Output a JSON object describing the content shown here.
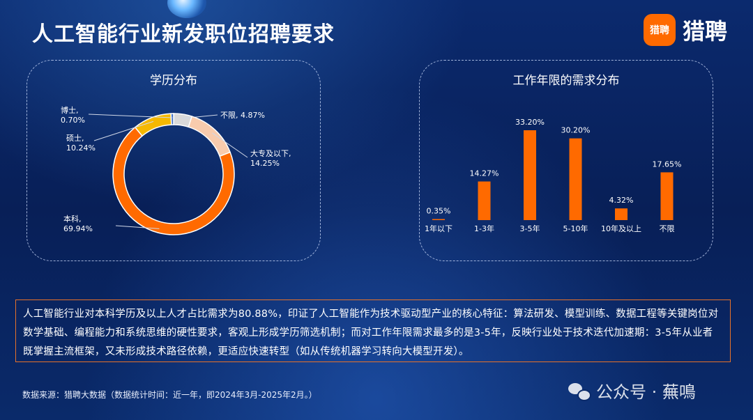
{
  "header": {
    "title": "人工智能行业新发职位招聘要求",
    "logo_badge": "猎聘",
    "logo_text": "猎聘"
  },
  "chart_data": [
    {
      "type": "pie",
      "style": "donut",
      "title": "学历分布",
      "slices": [
        {
          "label": "不限",
          "value": 4.87,
          "display": "4.87%",
          "color": "#d9d9d9"
        },
        {
          "label": "大专及以下",
          "value": 14.25,
          "display": "14.25%",
          "color": "#f8cbad"
        },
        {
          "label": "本科",
          "value": 69.94,
          "display": "69.94%",
          "color": "#ff6a00"
        },
        {
          "label": "硕士",
          "value": 10.24,
          "display": "10.24%",
          "color": "#f5b800"
        },
        {
          "label": "博士",
          "value": 0.7,
          "display": "0.70%",
          "color": "#4472c4"
        }
      ]
    },
    {
      "type": "bar",
      "title": "工作年限的需求分布",
      "categories": [
        "1年以下",
        "1-3年",
        "3-5年",
        "5-10年",
        "10年及以上",
        "不限"
      ],
      "values": [
        0.35,
        14.27,
        33.2,
        30.2,
        4.32,
        17.65
      ],
      "value_labels": [
        "0.35%",
        "14.27%",
        "33.20%",
        "30.20%",
        "4.32%",
        "17.65%"
      ],
      "ylim": [
        0,
        35
      ],
      "color": "#ff6a00",
      "grid": false
    }
  ],
  "summary": {
    "text": "人工智能行业对本科学历及以上人才占比需求为80.88%，印证了人工智能作为技术驱动型产业的核心特征：算法研发、模型训练、数据工程等关键岗位对数学基础、编程能力和系统思维的硬性要求，客观上形成学历筛选机制；而对工作年限需求最多的是3-5年，反映行业处于技术迭代加速期：3-5年从业者既掌握主流框架，又未形成技术路径依赖，更适应快速转型（如从传统机器学习转向大模型开发）。"
  },
  "footer": {
    "source": "数据来源：猎聘大数据（数据统计时间：近一年，即2024年3月-2025年2月。）",
    "watermark": "公众号 · 蕪鳴"
  }
}
